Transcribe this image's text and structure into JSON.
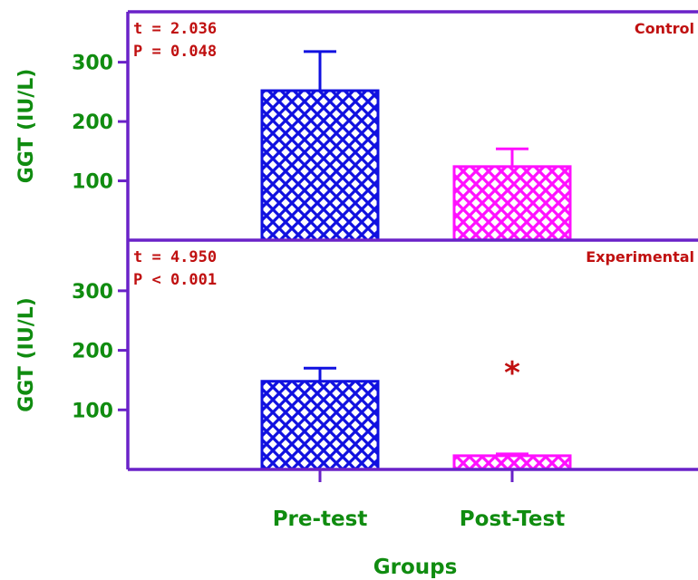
{
  "chart_data": [
    {
      "type": "bar",
      "panel_label": "Control",
      "stats": [
        "t = 2.036",
        "P = 0.048"
      ],
      "categories": [
        "Pre-test",
        "Post-Test"
      ],
      "values": [
        252,
        124
      ],
      "errors": [
        66,
        30
      ],
      "colors": [
        "#1010e0",
        "#ff10ff"
      ],
      "ylabel": "GGT (IU/L)",
      "yticks": [
        100,
        200,
        300
      ],
      "ylim": [
        0,
        385
      ],
      "marker": ""
    },
    {
      "type": "bar",
      "panel_label": "Experimental",
      "stats": [
        "t = 4.950",
        "P < 0.001"
      ],
      "categories": [
        "Pre-test",
        "Post-Test"
      ],
      "values": [
        148,
        23
      ],
      "errors": [
        22,
        3
      ],
      "colors": [
        "#1010e0",
        "#ff10ff"
      ],
      "ylabel": "GGT (IU/L)",
      "yticks": [
        100,
        200,
        300
      ],
      "ylim": [
        0,
        385
      ],
      "marker": "*"
    }
  ],
  "xlabel": "Groups",
  "style": {
    "axis_color": "#6a22c8",
    "label_color": "#108c10",
    "stat_color": "#c01010"
  }
}
